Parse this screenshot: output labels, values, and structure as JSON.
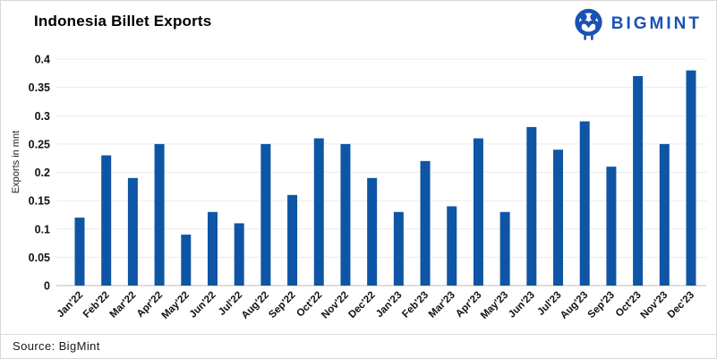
{
  "header": {
    "title": "Indonesia Billet Exports"
  },
  "logo": {
    "text": "BIGMINT",
    "icon": "bigmint-people-monogram",
    "color": "#1a52b4"
  },
  "footer": {
    "source": "Source: BigMint"
  },
  "chart_data": {
    "type": "bar",
    "title": "Indonesia Billet Exports",
    "xlabel": "",
    "ylabel": "Exports in mnt",
    "categories": [
      "Jan'22",
      "Feb'22",
      "Mar'22",
      "Apr'22",
      "May'22",
      "Jun'22",
      "Jul'22",
      "Aug'22",
      "Sep'22",
      "Oct'22",
      "Nov'22",
      "Dec'22",
      "Jan'23",
      "Feb'23",
      "Mar'23",
      "Apr'23",
      "May'23",
      "Jun'23",
      "Jul'23",
      "Aug'23",
      "Sep'23",
      "Oct'23",
      "Nov'23",
      "Dec'23"
    ],
    "values": [
      0.12,
      0.23,
      0.19,
      0.25,
      0.09,
      0.13,
      0.11,
      0.25,
      0.16,
      0.26,
      0.25,
      0.19,
      0.13,
      0.22,
      0.14,
      0.26,
      0.13,
      0.28,
      0.24,
      0.29,
      0.21,
      0.37,
      0.25,
      0.38
    ],
    "ylim": [
      0,
      0.4
    ],
    "ytick_labels": [
      "0",
      "0.05",
      "0.1",
      "0.15",
      "0.2",
      "0.25",
      "0.3",
      "0.35",
      "0.4"
    ],
    "grid": true,
    "legend": "none",
    "bar_color": "#0e55a5",
    "gridline_color": "#ebebeb",
    "axis_line_color": "#d4d4d4",
    "tick_label_color": "#111111"
  }
}
